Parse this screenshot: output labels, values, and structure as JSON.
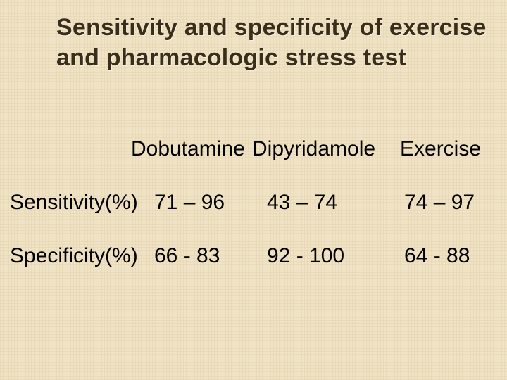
{
  "background_color": "#f0e3c5",
  "pattern_color": "rgba(200,175,120,0.15)",
  "text_color": "#000000",
  "title_color": "#3a2e1a",
  "title": "Sensitivity and specificity of exercise and pharmacologic stress test",
  "table": {
    "type": "table",
    "columns": [
      "Dobutamine",
      "Dipyridamole",
      "Exercise"
    ],
    "row_headers": [
      "Sensitivity(%)",
      "Specificity(%)"
    ],
    "rows": [
      [
        "71 – 96",
        "43 – 74",
        "74 – 97"
      ],
      [
        "66 - 83",
        "92 - 100",
        "64 - 88"
      ]
    ],
    "header_fontsize": 30,
    "cell_fontsize": 30,
    "title_fontsize": 34,
    "title_fontweight": 700
  }
}
